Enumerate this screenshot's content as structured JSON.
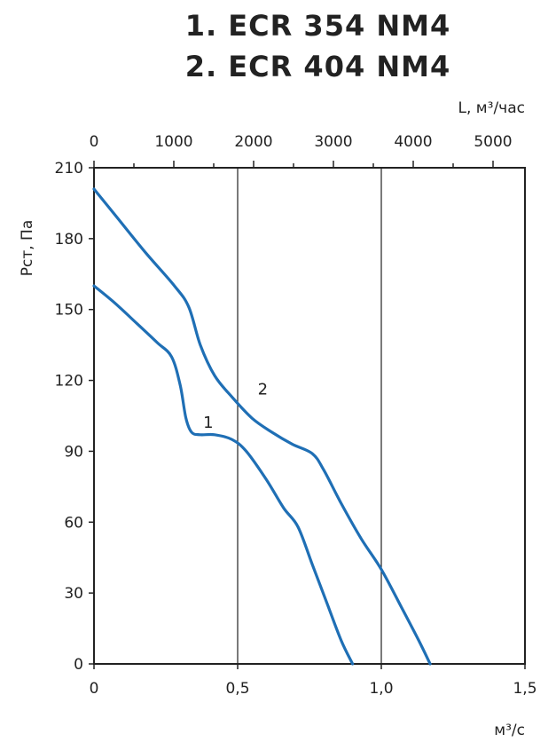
{
  "titles": [
    "1. ECR 354 NM4",
    "2. ECR 404 NM4"
  ],
  "colors": {
    "curve": "#1f6fb5",
    "axis": "#222222",
    "grid": "#222222"
  },
  "chart_data": {
    "type": "line",
    "xlabel": "м³/с",
    "x2label": "L, м³/час",
    "ylabel": "Pст, Па",
    "xlim": [
      0,
      1.5
    ],
    "ylim": [
      0,
      210
    ],
    "x2lim": [
      0,
      5400
    ],
    "x_ticks": [
      0,
      0.5,
      1.0,
      1.5
    ],
    "x_tick_labels": [
      "0",
      "0,5",
      "1,0",
      "1,5"
    ],
    "x2_ticks": [
      0,
      1000,
      2000,
      3000,
      4000,
      5000
    ],
    "x2_tick_labels": [
      "0",
      "1000",
      "2000",
      "3000",
      "4000",
      "5000"
    ],
    "y_ticks": [
      0,
      30,
      60,
      90,
      120,
      150,
      180,
      210
    ],
    "y_tick_labels": [
      "0",
      "30",
      "60",
      "90",
      "120",
      "150",
      "180",
      "210"
    ],
    "grid": "vertical at 0.5 and 1.0",
    "series": [
      {
        "name": "1",
        "label_at": [
          0.38,
          100
        ],
        "x": [
          0,
          0.07,
          0.15,
          0.22,
          0.27,
          0.3,
          0.32,
          0.34,
          0.37,
          0.42,
          0.48,
          0.53,
          0.6,
          0.66,
          0.71,
          0.76,
          0.81,
          0.86,
          0.9
        ],
        "y": [
          160,
          153,
          144,
          136,
          130,
          118,
          104,
          98,
          97,
          97,
          95,
          90,
          78,
          66,
          58,
          42,
          26,
          10,
          0
        ]
      },
      {
        "name": "2",
        "label_at": [
          0.57,
          114
        ],
        "x": [
          0,
          0.08,
          0.18,
          0.28,
          0.33,
          0.37,
          0.42,
          0.48,
          0.55,
          0.62,
          0.69,
          0.76,
          0.8,
          0.86,
          0.93,
          1.0,
          1.07,
          1.13,
          1.17
        ],
        "y": [
          201,
          189,
          174,
          160,
          151,
          135,
          122,
          113,
          104,
          98,
          93,
          89,
          82,
          68,
          53,
          40,
          24,
          10,
          0
        ]
      }
    ]
  }
}
